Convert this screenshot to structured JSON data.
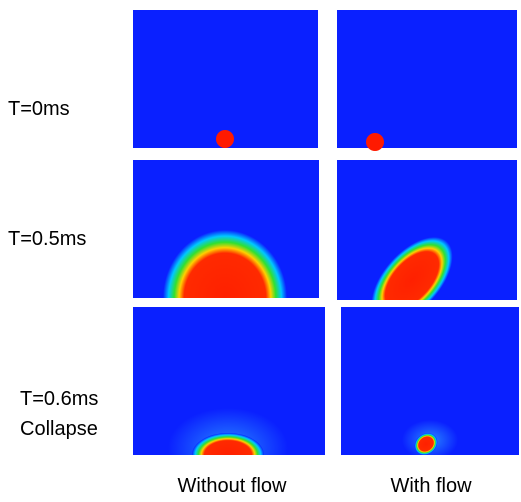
{
  "row_labels": [
    [
      "T=0ms"
    ],
    [
      "T=0.5ms"
    ],
    [
      "T=0.6ms",
      "Collapse"
    ]
  ],
  "column_labels": [
    "Without flow",
    "With flow"
  ]
}
